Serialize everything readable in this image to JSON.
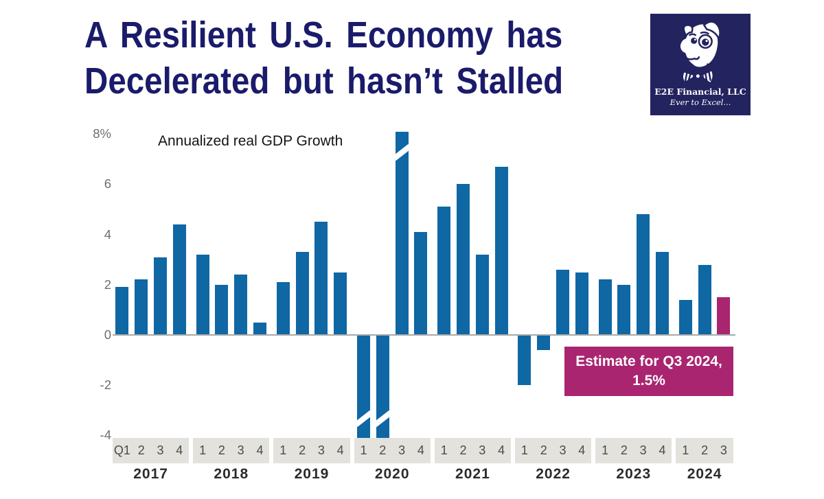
{
  "slide": {
    "title_line1": "A Resilient U.S. Economy has",
    "title_line2": "Decelerated but hasn’t Stalled",
    "title_color": "#1b1b6b"
  },
  "logo": {
    "company": "E2E Financial, LLC",
    "tagline": "Ever to Excel...",
    "bg_color": "#23235f",
    "icon": "dog-with-bowtie-icon"
  },
  "chart_data": {
    "type": "bar",
    "title": "Annualized real GDP Growth",
    "unit": "%",
    "bar_color": "#0f67a4",
    "estimate_color": "#a92570",
    "ylim": [
      -4.35,
      8.2
    ],
    "grid": false,
    "y_ticks": [
      {
        "label": "8%",
        "value": 8
      },
      {
        "label": "6",
        "value": 6
      },
      {
        "label": "4",
        "value": 4
      },
      {
        "label": "2",
        "value": 2
      },
      {
        "label": "0",
        "value": 0
      },
      {
        "label": "-2",
        "value": -2
      },
      {
        "label": "-4",
        "value": -4
      }
    ],
    "groups": [
      {
        "year": "2017",
        "quarters": [
          "Q1",
          "2",
          "3",
          "4"
        ],
        "values": [
          1.9,
          2.2,
          3.1,
          4.4
        ]
      },
      {
        "year": "2018",
        "quarters": [
          "1",
          "2",
          "3",
          "4"
        ],
        "values": [
          3.2,
          2.0,
          2.4,
          0.5
        ]
      },
      {
        "year": "2019",
        "quarters": [
          "1",
          "2",
          "3",
          "4"
        ],
        "values": [
          2.1,
          3.3,
          4.5,
          2.5
        ]
      },
      {
        "year": "2020",
        "quarters": [
          "1",
          "2",
          "3",
          "4"
        ],
        "values": [
          -4.1,
          -4.1,
          8.1,
          4.1
        ],
        "clipped": [
          true,
          true,
          true,
          false
        ]
      },
      {
        "year": "2021",
        "quarters": [
          "1",
          "2",
          "3",
          "4"
        ],
        "values": [
          5.1,
          6.0,
          3.2,
          6.7
        ]
      },
      {
        "year": "2022",
        "quarters": [
          "1",
          "2",
          "3",
          "4"
        ],
        "values": [
          -2.0,
          -0.6,
          2.6,
          2.5
        ]
      },
      {
        "year": "2023",
        "quarters": [
          "1",
          "2",
          "3",
          "4"
        ],
        "values": [
          2.2,
          2.0,
          4.8,
          3.3
        ]
      },
      {
        "year": "2024",
        "quarters": [
          "1",
          "2",
          "3"
        ],
        "values": [
          1.4,
          2.8,
          1.5
        ],
        "estimate": [
          false,
          false,
          true
        ]
      }
    ],
    "annotation": {
      "line1": "Estimate for Q3 2024,",
      "line2": "1.5%"
    }
  }
}
